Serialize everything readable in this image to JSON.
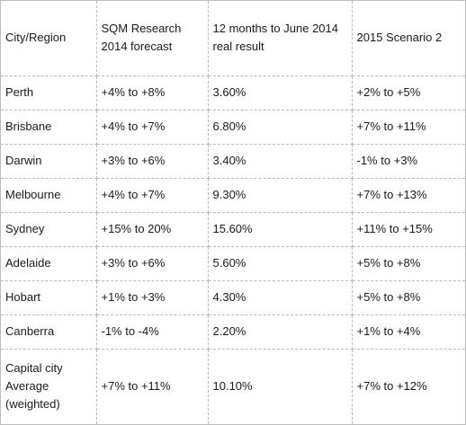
{
  "table": {
    "headers": [
      "City/Region",
      "SQM Research\n2014 forecast",
      "12 months to June 2014\nreal result",
      "2015 Scenario 2"
    ],
    "rows": [
      {
        "city": "Perth",
        "forecast_2014": "+4% to +8%",
        "result_june_2014": "3.60%",
        "scenario_2015": "+2% to +5%"
      },
      {
        "city": "Brisbane",
        "forecast_2014": "+4% to +7%",
        "result_june_2014": "6.80%",
        "scenario_2015": "+7% to +11%"
      },
      {
        "city": "Darwin",
        "forecast_2014": "+3% to +6%",
        "result_june_2014": "3.40%",
        "scenario_2015": "-1% to +3%"
      },
      {
        "city": "Melbourne",
        "forecast_2014": "+4% to +7%",
        "result_june_2014": "9.30%",
        "scenario_2015": "+7% to +13%"
      },
      {
        "city": "Sydney",
        "forecast_2014": "+15% to 20%",
        "result_june_2014": "15.60%",
        "scenario_2015": "+11% to +15%"
      },
      {
        "city": "Adelaide",
        "forecast_2014": "+3% to +6%",
        "result_june_2014": "5.60%",
        "scenario_2015": "+5% to +8%"
      },
      {
        "city": "Hobart",
        "forecast_2014": "+1% to +3%",
        "result_june_2014": "4.30%",
        "scenario_2015": "+5% to +8%"
      },
      {
        "city": "Canberra",
        "forecast_2014": "-1% to -4%",
        "result_june_2014": "2.20%",
        "scenario_2015": "+1% to +4%"
      },
      {
        "city": "Capital city\nAverage\n(weighted)",
        "forecast_2014": "+7% to +11%",
        "result_june_2014": "10.10%",
        "scenario_2015": "+7% to +12%"
      }
    ]
  }
}
